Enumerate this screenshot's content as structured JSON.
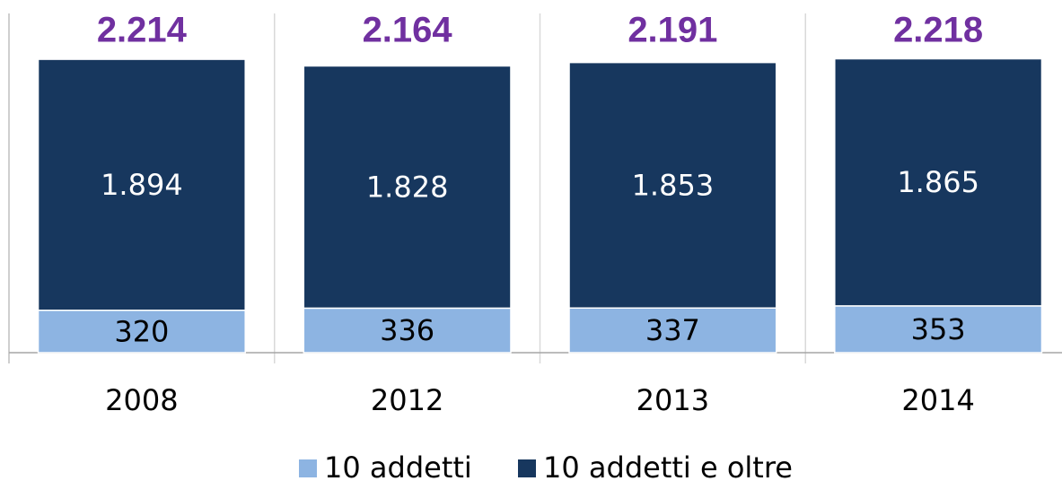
{
  "chart_data": {
    "type": "stacked_bar",
    "categories": [
      "2008",
      "2012",
      "2013",
      "2014"
    ],
    "series": [
      {
        "name": "10 addetti",
        "color": "#8db4e2",
        "values": [
          320,
          336,
          337,
          353
        ]
      },
      {
        "name": "10 addetti e oltre",
        "color": "#17375e",
        "values": [
          1894,
          1828,
          1853,
          1865
        ],
        "value_labels": [
          "1.894",
          "1.828",
          "1.853",
          "1.865"
        ]
      }
    ],
    "totals": {
      "values": [
        2214,
        2164,
        2191,
        2218
      ],
      "value_labels": [
        "2.214",
        "2.164",
        "2.191",
        "2.218"
      ],
      "color": "#7030a0"
    },
    "ylim": [
      0,
      2560
    ],
    "legend": "bottom"
  }
}
